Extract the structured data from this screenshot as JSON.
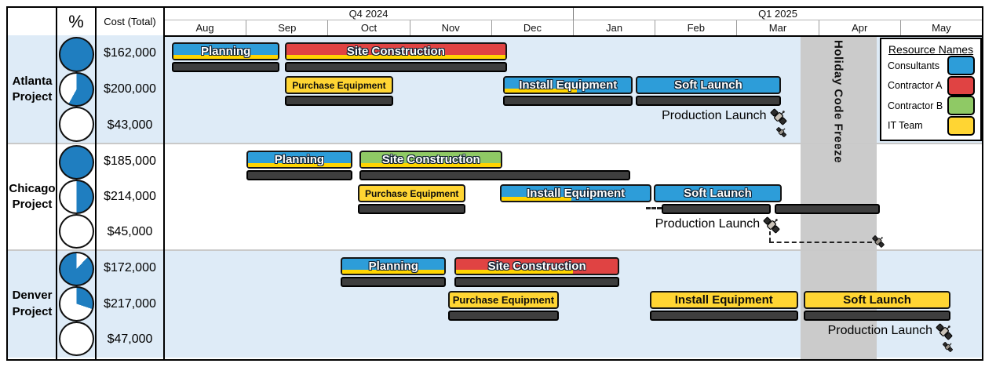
{
  "table": {
    "percent_header": "%",
    "cost_header": "Cost (Total)",
    "quarters": [
      "Q4 2024",
      "Q1 2025"
    ],
    "months": [
      "Aug",
      "Sep",
      "Oct",
      "Nov",
      "Dec",
      "Jan",
      "Feb",
      "Mar",
      "Apr",
      "May"
    ]
  },
  "legend": {
    "title": "Resource Names",
    "items": [
      {
        "label": "Consultants",
        "color": "#2d9dd9"
      },
      {
        "label": "Contractor A",
        "color": "#e04343"
      },
      {
        "label": "Contractor B",
        "color": "#8fc965"
      },
      {
        "label": "IT Team",
        "color": "#ffd533"
      }
    ]
  },
  "freeze_zone": {
    "label": "Holiday Code Freeze",
    "start": 7.78,
    "end": 8.71,
    "color": "#cbcbcb"
  },
  "style_colors": {
    "band_blue": "#deebf7",
    "band_white": "#ffffff",
    "pie_fill": "#1f7ec0",
    "baseline_gray": "#3e3e3e",
    "progress_yellow": "#ffd400"
  },
  "chart_data": {
    "type": "gantt",
    "time_axis": {
      "unit": "month",
      "labels": [
        "Aug",
        "Sep",
        "Oct",
        "Nov",
        "Dec",
        "Jan",
        "Feb",
        "Mar",
        "Apr",
        "May"
      ],
      "quarters": [
        "Q4 2024",
        "Q1 2025"
      ]
    },
    "projects": [
      {
        "name": "Atlanta Project",
        "band_color": "#deebf7",
        "percent_complete_pies": [
          100,
          58,
          0
        ],
        "costs": [
          "$162,000",
          "$200,000",
          "$43,000"
        ],
        "tasks": [
          {
            "label": "Planning",
            "resource": "Consultants",
            "lane": 0,
            "start": 0.1,
            "end": 1.41,
            "progress": 1
          },
          {
            "label": "Site Construction",
            "resource": "Contractor A",
            "lane": 0,
            "start": 1.48,
            "end": 4.19,
            "progress": 1
          },
          {
            "label": "Purchase Equipment",
            "resource": "IT Team",
            "lane": 1,
            "start": 1.48,
            "end": 2.8,
            "progress": 1
          },
          {
            "label": "Install Equipment",
            "resource": "Consultants",
            "lane": 1,
            "start": 4.15,
            "end": 5.73,
            "progress": 0.57
          },
          {
            "label": "Soft Launch",
            "resource": "Consultants",
            "lane": 1,
            "start": 5.77,
            "end": 7.54,
            "progress": 0
          }
        ],
        "milestone": {
          "label": "Production Launch",
          "planned": 7.5,
          "actual": 7.52,
          "moved": false
        }
      },
      {
        "name": "Chicago Project",
        "band_color": "#ffffff",
        "percent_complete_pies": [
          100,
          50,
          0
        ],
        "costs": [
          "$185,000",
          "$214,000",
          "$45,000"
        ],
        "tasks": [
          {
            "label": "Planning",
            "resource": "Consultants",
            "lane": 0,
            "start": 1.01,
            "end": 2.3,
            "progress": 1
          },
          {
            "label": "Site Construction",
            "resource": "Contractor B",
            "lane": 0,
            "start": 2.39,
            "end": 4.14,
            "progress": 1,
            "baselines": [
              [
                2.39,
                5.7
              ]
            ]
          },
          {
            "label": "Purchase Equipment",
            "resource": "IT Team",
            "lane": 1,
            "start": 2.37,
            "end": 3.69,
            "progress": 1
          },
          {
            "label": "Install Equipment",
            "resource": "Consultants",
            "lane": 1,
            "start": 4.11,
            "end": 5.96,
            "progress": 0.47,
            "baselines": []
          },
          {
            "label": "Soft Launch",
            "resource": "Consultants",
            "lane": 1,
            "start": 5.99,
            "end": 7.55,
            "progress": 0,
            "baselines": [
              [
                6.08,
                7.42
              ],
              [
                7.47,
                8.75
              ]
            ],
            "dash_stub": [
              5.89,
              6.08
            ]
          }
        ],
        "milestone": {
          "label": "Production Launch",
          "planned": 7.42,
          "actual": 8.73,
          "moved": true
        }
      },
      {
        "name": "Denver Project",
        "band_color": "#deebf7",
        "percent_complete_pies": [
          88,
          30,
          0
        ],
        "costs": [
          "$172,000",
          "$217,000",
          "$47,000"
        ],
        "tasks": [
          {
            "label": "Planning",
            "resource": "Consultants",
            "lane": 0,
            "start": 2.16,
            "end": 3.45,
            "progress": 1
          },
          {
            "label": "Site Construction",
            "resource": "Contractor A",
            "lane": 0,
            "start": 3.55,
            "end": 5.57,
            "progress": 0.72
          },
          {
            "label": "Purchase Equipment",
            "resource": "IT Team",
            "lane": 1,
            "start": 3.47,
            "end": 4.83,
            "progress": 1
          },
          {
            "label": "Install Equipment",
            "resource": "IT Team",
            "lane": 1,
            "start": 5.94,
            "end": 7.75,
            "progress": 0
          },
          {
            "label": "Soft Launch",
            "resource": "IT Team",
            "lane": 1,
            "start": 7.82,
            "end": 9.62,
            "progress": 0
          }
        ],
        "milestone": {
          "label": "Production Launch",
          "planned": 9.53,
          "actual": 9.56,
          "moved": false
        }
      }
    ]
  }
}
